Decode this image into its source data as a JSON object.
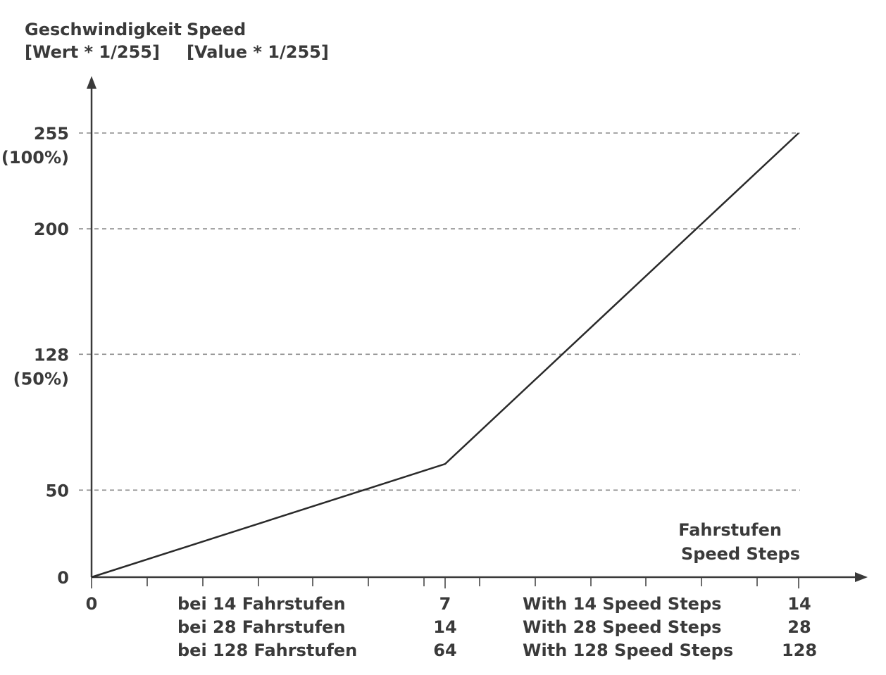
{
  "chart_data": {
    "type": "line",
    "y_title": [
      "Geschwindigkeit",
      "[Wert * 1/255]"
    ],
    "y_title_en": [
      "Speed",
      "[Value * 1/255]"
    ],
    "x_title": [
      "Fahrstufen",
      "Speed Steps"
    ],
    "ylim": [
      0,
      255
    ],
    "y_ticks": [
      {
        "value": 0,
        "label": "0",
        "sub": ""
      },
      {
        "value": 50,
        "label": "50",
        "sub": ""
      },
      {
        "value": 128,
        "label": "128",
        "sub": "(50%)"
      },
      {
        "value": 200,
        "label": "200",
        "sub": ""
      },
      {
        "value": 255,
        "label": "255",
        "sub": "(100%)"
      }
    ],
    "x_fraction_ticks": [
      0,
      0.5,
      1
    ],
    "x_zero_label": "0",
    "x_mid_values": [
      "7",
      "14",
      "64"
    ],
    "x_end_values": [
      "14",
      "28",
      "128"
    ],
    "x_mid_notes": [
      "bei 14 Fahrstufen",
      "bei 28 Fahrstufen",
      "bei 128 Fahrstufen"
    ],
    "x_end_notes": [
      "With 14 Speed Steps",
      "With 28 Speed Steps",
      "With 128 Speed Steps"
    ],
    "series": [
      {
        "x_fraction": [
          0,
          0.5,
          1
        ],
        "y": [
          0,
          65,
          255
        ]
      }
    ],
    "grid": true,
    "colors": {
      "line": "#2a2a2a",
      "grid": "#8a8a8a",
      "text": "#3a3a3a"
    }
  }
}
